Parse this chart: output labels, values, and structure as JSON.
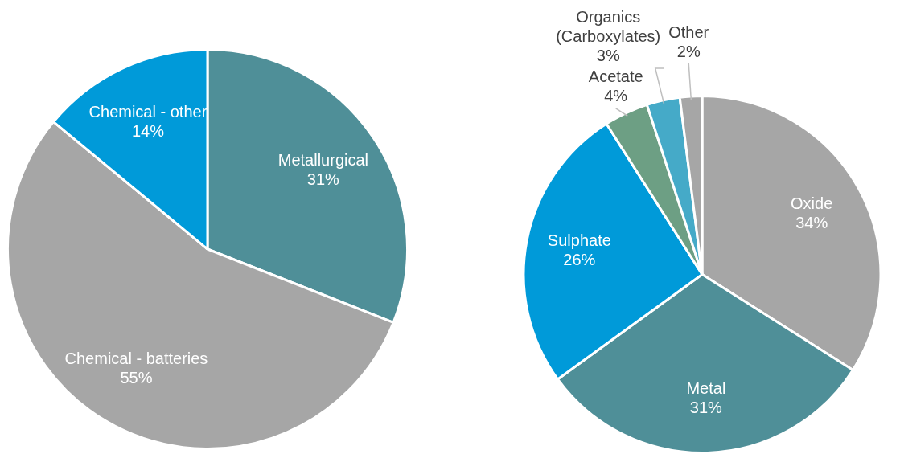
{
  "chart_data": [
    {
      "type": "pie",
      "categories": [
        "Metallurgical",
        "Chemical - batteries",
        "Chemical - other"
      ],
      "values": [
        31,
        55,
        14
      ],
      "value_labels": [
        "31%",
        "55%",
        "14%"
      ],
      "colors": [
        "#4f8f98",
        "#a6a6a6",
        "#009ad9"
      ]
    },
    {
      "type": "pie",
      "categories": [
        "Oxide",
        "Metal",
        "Sulphate",
        "Acetate",
        "Organics\n(Carboxylates)",
        "Other"
      ],
      "values": [
        34,
        31,
        26,
        4,
        3,
        2
      ],
      "value_labels": [
        "34%",
        "31%",
        "26%",
        "4%",
        "3%",
        "2%"
      ],
      "colors": [
        "#a6a6a6",
        "#4f8f98",
        "#009ad9",
        "#6d9f84",
        "#45aac8",
        "#a6a6a6"
      ]
    }
  ]
}
